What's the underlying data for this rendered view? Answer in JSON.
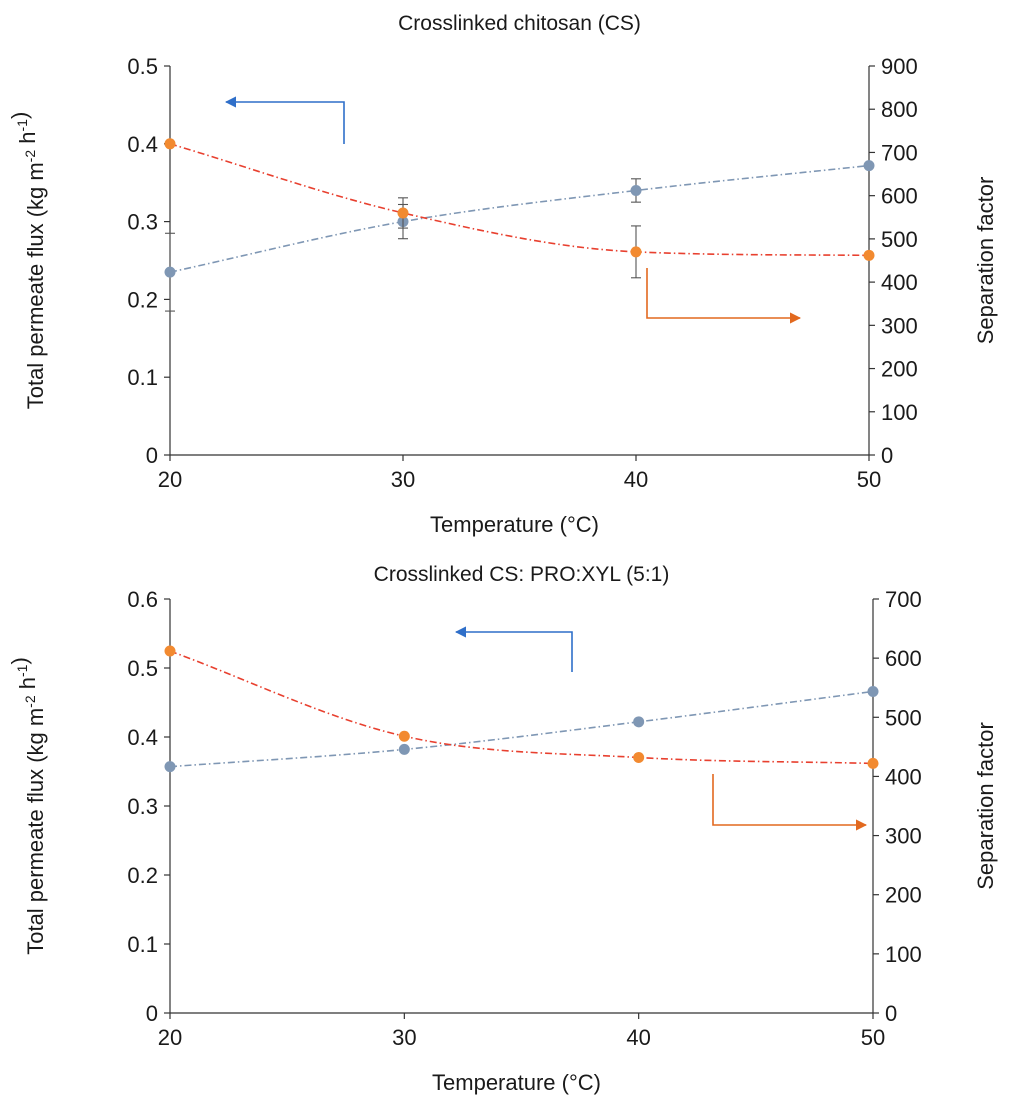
{
  "colors": {
    "flux": "#7f97b4",
    "separation": "#f28a30",
    "fit": "#e8402f",
    "flux_arrow": "#2f6fc9",
    "sep_arrow": "#e2691f",
    "axis": "#333333",
    "error_bar": "#555555"
  },
  "chart_data": [
    {
      "type": "line",
      "title": "Crosslinked chitosan (CS)",
      "xlabel": "Temperature (°C)",
      "ylabel_left": "Total permeate flux (kg m-2 h-1)",
      "ylabel_right": "Separation factor",
      "x": [
        20,
        30,
        40,
        50
      ],
      "xlim": [
        20,
        50
      ],
      "xticks": [
        "20",
        "30",
        "40",
        "50"
      ],
      "ylim_left": [
        0,
        0.5
      ],
      "yticks_left": [
        "0",
        "0.1",
        "0.2",
        "0.3",
        "0.4",
        "0.5"
      ],
      "ylim_right": [
        0,
        900
      ],
      "yticks_right": [
        "0",
        "100",
        "200",
        "300",
        "400",
        "500",
        "600",
        "700",
        "800",
        "900"
      ],
      "grid": false,
      "series": [
        {
          "axis": "left",
          "values": [
            0.235,
            0.3,
            0.34,
            0.372
          ],
          "errors": [
            0.05,
            0.022,
            0.015,
            0.0
          ],
          "line_style": "dash-dot"
        },
        {
          "axis": "right",
          "values": [
            720,
            560,
            470,
            462
          ],
          "errors": [
            0,
            35,
            60,
            0
          ],
          "line_style": "dash-dot"
        }
      ],
      "annotations": [
        {
          "type": "arrow-left",
          "points_to": "left axis",
          "series": "flux"
        },
        {
          "type": "arrow-right",
          "points_to": "right axis",
          "series": "separation factor"
        }
      ]
    },
    {
      "type": "line",
      "title": "Crosslinked CS: PRO:XYL (5:1)",
      "xlabel": "Temperature (°C)",
      "ylabel_left": "Total permeate flux (kg m-2 h-1)",
      "ylabel_right": "Separation factor",
      "x": [
        20,
        30,
        40,
        50
      ],
      "xlim": [
        20,
        50
      ],
      "xticks": [
        "20",
        "30",
        "40",
        "50"
      ],
      "ylim_left": [
        0,
        0.6
      ],
      "yticks_left": [
        "0",
        "0.1",
        "0.2",
        "0.3",
        "0.4",
        "0.5",
        "0.6"
      ],
      "ylim_right": [
        0,
        700
      ],
      "yticks_right": [
        "0",
        "100",
        "200",
        "300",
        "400",
        "500",
        "600",
        "700"
      ],
      "grid": false,
      "series": [
        {
          "axis": "left",
          "values": [
            0.357,
            0.382,
            0.422,
            0.466
          ],
          "errors": [
            0,
            0,
            0,
            0
          ],
          "line_style": "dash-dot"
        },
        {
          "axis": "right",
          "values": [
            612,
            468,
            432,
            422
          ],
          "errors": [
            0,
            0,
            0,
            0
          ],
          "line_style": "dash-dot"
        }
      ],
      "annotations": [
        {
          "type": "arrow-left",
          "points_to": "left axis",
          "series": "flux"
        },
        {
          "type": "arrow-right",
          "points_to": "right axis",
          "series": "separation factor"
        }
      ]
    }
  ]
}
